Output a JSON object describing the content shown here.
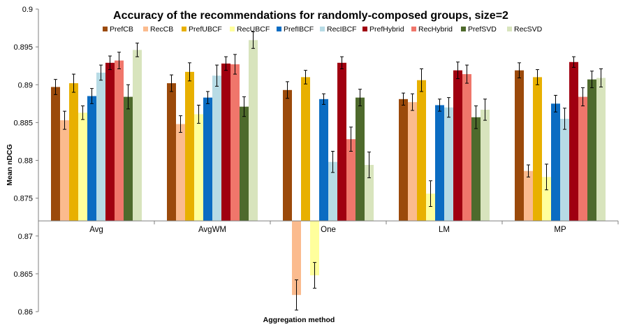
{
  "chart_data": {
    "type": "bar",
    "title": "Accuracy of the recommendations for randomly-composed groups, size=2",
    "xlabel": "Aggregation method",
    "ylabel": "Mean nDCG",
    "ylim": [
      0.86,
      0.9
    ],
    "yticks": [
      "0.86",
      "0.865",
      "0.87",
      "0.875",
      "0.88",
      "0.885",
      "0.89",
      "0.895",
      "0.9"
    ],
    "baseline": 0.872,
    "grid": false,
    "legend_position": "top",
    "categories": [
      "Avg",
      "AvgWM",
      "One",
      "LM",
      "MP"
    ],
    "series": [
      {
        "name": "PrefCB",
        "color": "#9b4a0b",
        "values": [
          0.8897,
          0.8902,
          0.8893,
          0.8881,
          0.8919
        ],
        "errors": [
          0.001,
          0.0011,
          0.0011,
          0.0008,
          0.001
        ]
      },
      {
        "name": "RecCB",
        "color": "#fbbb8e",
        "values": [
          0.8853,
          0.8848,
          0.8622,
          0.8877,
          0.8786
        ],
        "errors": [
          0.0012,
          0.0011,
          0.002,
          0.0011,
          0.0008
        ]
      },
      {
        "name": "PrefUBCF",
        "color": "#e8b000",
        "values": [
          0.8902,
          0.8917,
          0.891,
          0.8906,
          0.891
        ],
        "errors": [
          0.0012,
          0.0012,
          0.0009,
          0.0015,
          0.001
        ]
      },
      {
        "name": "RecUBCF",
        "color": "#ffff9c",
        "values": [
          0.8863,
          0.8861,
          0.8648,
          0.8756,
          0.8778
        ],
        "errors": [
          0.0009,
          0.0012,
          0.0017,
          0.0017,
          0.0017
        ]
      },
      {
        "name": "PrefIBCF",
        "color": "#0b6cc2",
        "values": [
          0.8885,
          0.8883,
          0.8881,
          0.8873,
          0.8875
        ],
        "errors": [
          0.001,
          0.0008,
          0.0007,
          0.0008,
          0.0011
        ]
      },
      {
        "name": "RecIBCF",
        "color": "#b7dbe5",
        "values": [
          0.8916,
          0.8912,
          0.8798,
          0.887,
          0.8855
        ],
        "errors": [
          0.001,
          0.0014,
          0.0014,
          0.0013,
          0.0014
        ]
      },
      {
        "name": "PrefHybrid",
        "color": "#a00010",
        "values": [
          0.8929,
          0.8928,
          0.8929,
          0.8919,
          0.893
        ],
        "errors": [
          0.0009,
          0.0009,
          0.0008,
          0.0011,
          0.0007
        ]
      },
      {
        "name": "RecHybrid",
        "color": "#f0766b",
        "values": [
          0.8932,
          0.8927,
          0.8828,
          0.8914,
          0.8884
        ],
        "errors": [
          0.0011,
          0.0013,
          0.0016,
          0.0012,
          0.0012
        ]
      },
      {
        "name": "PrefSVD",
        "color": "#4e6a2c",
        "values": [
          0.8884,
          0.8871,
          0.8883,
          0.8857,
          0.8907
        ],
        "errors": [
          0.0016,
          0.0013,
          0.0011,
          0.0015,
          0.0011
        ]
      },
      {
        "name": "RecSVD",
        "color": "#d8e4bd",
        "values": [
          0.8946,
          0.8959,
          0.8794,
          0.8867,
          0.8909
        ],
        "errors": [
          0.0009,
          0.0011,
          0.0017,
          0.0014,
          0.0012
        ]
      }
    ]
  }
}
